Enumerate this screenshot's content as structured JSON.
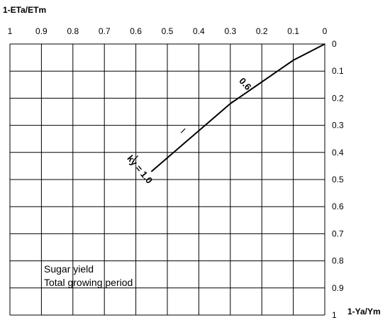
{
  "chart_data": {
    "type": "line",
    "title": "",
    "xlabel": "1-ETa/ETm",
    "ylabel": "1-Ya/Ym",
    "xlim": [
      1,
      0
    ],
    "ylim": [
      0,
      1
    ],
    "x_ticks": [
      "1",
      "0.9",
      "0.8",
      "0.7",
      "0.6",
      "0.5",
      "0.4",
      "0.3",
      "0.2",
      "0.1",
      "0"
    ],
    "y_ticks": [
      "0",
      "0.1",
      "0.2",
      "0.3",
      "0.4",
      "0.5",
      "0.6",
      "0.7",
      "0.8",
      "0.9",
      "1"
    ],
    "grid": true,
    "series": [
      {
        "x": [
          0,
          0.05,
          0.1,
          0.15,
          0.2,
          0.25,
          0.3,
          0.35,
          0.4,
          0.45,
          0.5,
          0.55
        ],
        "y": [
          0,
          0.03,
          0.06,
          0.1,
          0.14,
          0.18,
          0.22,
          0.27,
          0.32,
          0.37,
          0.42,
          0.47
        ]
      }
    ],
    "annotations": {
      "label_06": "0.6",
      "label_ky": "ky = 1.0",
      "legend_line1": "Sugar yield",
      "legend_line2": "Total growing period"
    },
    "label_positions": {
      "label_06_x": 0.26,
      "label_06_y": 0.155,
      "label_ky_x": 0.595,
      "label_ky_y": 0.47
    },
    "tick_marks": {
      "x": [
        0.3,
        0.45,
        0.6
      ],
      "y": [
        0.22,
        0.32,
        0.42
      ]
    }
  }
}
